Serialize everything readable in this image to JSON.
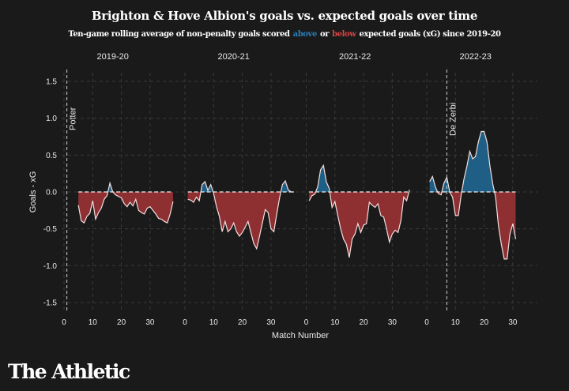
{
  "title": "Brighton & Hove Albion's goals vs. expected goals over time",
  "subtitle": {
    "prefix": "Ten-game rolling average of non-penalty goals scored",
    "above": "above",
    "or": "or",
    "below": "below",
    "suffix": "expected goals (xG) since 2019-20"
  },
  "logo": "The Athletic",
  "colors": {
    "above": "#1f5f85",
    "below": "#8e2f32",
    "line": "#f4dede",
    "background": "#1a1a1a"
  },
  "chart_data": {
    "type": "area",
    "xlabel": "Match Number",
    "ylabel": "Goals - xG",
    "ylim": [
      -1.6,
      1.7
    ],
    "yticks": [
      "1.5",
      "1.0",
      "0.5",
      "0.0",
      "-0.5",
      "-1.0",
      "-1.5"
    ],
    "ytick_values": [
      1.5,
      1.0,
      0.5,
      0.0,
      -0.5,
      -1.0,
      -1.5
    ],
    "xticks": [
      "0",
      "10",
      "20",
      "30"
    ],
    "xtick_values": [
      0,
      10,
      20,
      30
    ],
    "grid": true,
    "panels": [
      {
        "season": "2019-20",
        "x_start": 5,
        "values": [
          -0.18,
          -0.39,
          -0.42,
          -0.33,
          -0.29,
          -0.12,
          -0.37,
          -0.28,
          -0.22,
          -0.1,
          -0.05,
          0.12,
          0.0,
          -0.04,
          -0.06,
          -0.08,
          -0.16,
          -0.2,
          -0.14,
          -0.19,
          -0.1,
          -0.25,
          -0.28,
          -0.3,
          -0.22,
          -0.2,
          -0.25,
          -0.3,
          -0.36,
          -0.37,
          -0.4,
          -0.42,
          -0.3,
          -0.13
        ],
        "annotation": {
          "label": "Potter",
          "match": 1
        }
      },
      {
        "season": "2020-21",
        "x_start": 1,
        "values": [
          -0.1,
          -0.11,
          -0.14,
          -0.07,
          -0.12,
          0.1,
          0.14,
          0.02,
          0.1,
          -0.02,
          -0.2,
          -0.33,
          -0.54,
          -0.4,
          -0.54,
          -0.5,
          -0.42,
          -0.54,
          -0.6,
          -0.55,
          -0.48,
          -0.4,
          -0.55,
          -0.7,
          -0.77,
          -0.6,
          -0.42,
          -0.24,
          -0.28,
          -0.5,
          -0.54,
          -0.3,
          -0.08,
          0.1,
          0.15,
          0.03,
          0.0,
          0.0
        ]
      },
      {
        "season": "2021-22",
        "x_start": 1,
        "values": [
          -0.12,
          -0.05,
          -0.03,
          0.07,
          0.3,
          0.36,
          0.14,
          0.05,
          -0.21,
          -0.13,
          -0.32,
          -0.5,
          -0.64,
          -0.71,
          -0.89,
          -0.64,
          -0.57,
          -0.43,
          -0.55,
          -0.45,
          -0.43,
          -0.14,
          -0.18,
          -0.21,
          -0.16,
          -0.32,
          -0.34,
          -0.5,
          -0.68,
          -0.57,
          -0.52,
          -0.55,
          -0.39,
          -0.07,
          -0.12,
          0.03
        ]
      },
      {
        "season": "2022-23",
        "x_start": 1,
        "values": [
          0.14,
          0.21,
          0.07,
          -0.02,
          -0.04,
          0.12,
          0.2,
          0.0,
          -0.07,
          -0.32,
          -0.32,
          -0.04,
          0.18,
          0.35,
          0.55,
          0.45,
          0.48,
          0.68,
          0.82,
          0.82,
          0.68,
          0.36,
          0.11,
          -0.07,
          -0.46,
          -0.71,
          -0.91,
          -0.91,
          -0.57,
          -0.43,
          -0.64
        ],
        "annotation": {
          "label": "De Zerbi",
          "match": 7
        }
      }
    ]
  }
}
